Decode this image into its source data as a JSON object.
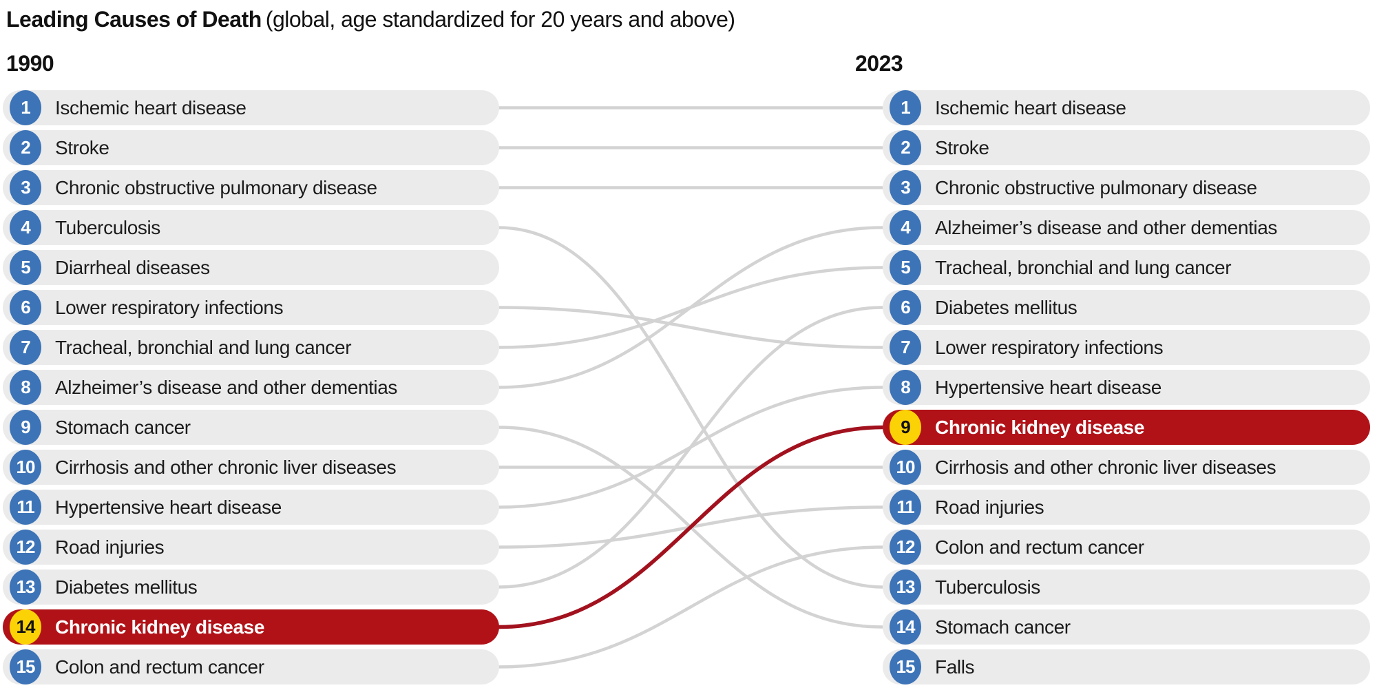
{
  "chart_data": {
    "type": "bump",
    "title": "Leading Causes of Death",
    "subtitle": "(global, age standardized for 20 years and above)",
    "columns": [
      "1990",
      "2023"
    ],
    "left_ranking": [
      {
        "rank": 1,
        "label": "Ischemic heart disease",
        "highlight": false
      },
      {
        "rank": 2,
        "label": "Stroke",
        "highlight": false
      },
      {
        "rank": 3,
        "label": "Chronic obstructive pulmonary disease",
        "highlight": false
      },
      {
        "rank": 4,
        "label": "Tuberculosis",
        "highlight": false
      },
      {
        "rank": 5,
        "label": "Diarrheal diseases",
        "highlight": false
      },
      {
        "rank": 6,
        "label": "Lower respiratory infections",
        "highlight": false
      },
      {
        "rank": 7,
        "label": "Tracheal, bronchial and lung cancer",
        "highlight": false
      },
      {
        "rank": 8,
        "label": "Alzheimer’s disease and other dementias",
        "highlight": false
      },
      {
        "rank": 9,
        "label": "Stomach cancer",
        "highlight": false
      },
      {
        "rank": 10,
        "label": "Cirrhosis and other chronic liver diseases",
        "highlight": false
      },
      {
        "rank": 11,
        "label": "Hypertensive heart disease",
        "highlight": false
      },
      {
        "rank": 12,
        "label": "Road injuries",
        "highlight": false
      },
      {
        "rank": 13,
        "label": "Diabetes mellitus",
        "highlight": false
      },
      {
        "rank": 14,
        "label": "Chronic kidney disease",
        "highlight": true
      },
      {
        "rank": 15,
        "label": "Colon and rectum cancer",
        "highlight": false
      }
    ],
    "right_ranking": [
      {
        "rank": 1,
        "label": "Ischemic heart disease",
        "highlight": false
      },
      {
        "rank": 2,
        "label": "Stroke",
        "highlight": false
      },
      {
        "rank": 3,
        "label": "Chronic obstructive pulmonary disease",
        "highlight": false
      },
      {
        "rank": 4,
        "label": "Alzheimer’s disease and other dementias",
        "highlight": false
      },
      {
        "rank": 5,
        "label": "Tracheal, bronchial and lung cancer",
        "highlight": false
      },
      {
        "rank": 6,
        "label": "Diabetes mellitus",
        "highlight": false
      },
      {
        "rank": 7,
        "label": "Lower respiratory infections",
        "highlight": false
      },
      {
        "rank": 8,
        "label": "Hypertensive heart disease",
        "highlight": false
      },
      {
        "rank": 9,
        "label": "Chronic kidney disease",
        "highlight": true
      },
      {
        "rank": 10,
        "label": "Cirrhosis and other chronic liver diseases",
        "highlight": false
      },
      {
        "rank": 11,
        "label": "Road injuries",
        "highlight": false
      },
      {
        "rank": 12,
        "label": "Colon and rectum cancer",
        "highlight": false
      },
      {
        "rank": 13,
        "label": "Tuberculosis",
        "highlight": false
      },
      {
        "rank": 14,
        "label": "Stomach cancer",
        "highlight": false
      },
      {
        "rank": 15,
        "label": "Falls",
        "highlight": false
      }
    ],
    "links": [
      {
        "from": 1,
        "to": 1,
        "highlight": false
      },
      {
        "from": 2,
        "to": 2,
        "highlight": false
      },
      {
        "from": 3,
        "to": 3,
        "highlight": false
      },
      {
        "from": 4,
        "to": 13,
        "highlight": false
      },
      {
        "from": 6,
        "to": 7,
        "highlight": false
      },
      {
        "from": 7,
        "to": 5,
        "highlight": false
      },
      {
        "from": 8,
        "to": 4,
        "highlight": false
      },
      {
        "from": 9,
        "to": 14,
        "highlight": false
      },
      {
        "from": 10,
        "to": 10,
        "highlight": false
      },
      {
        "from": 11,
        "to": 8,
        "highlight": false
      },
      {
        "from": 12,
        "to": 11,
        "highlight": false
      },
      {
        "from": 13,
        "to": 6,
        "highlight": false
      },
      {
        "from": 15,
        "to": 12,
        "highlight": false
      },
      {
        "from": 14,
        "to": 9,
        "highlight": true
      }
    ]
  },
  "colors": {
    "badge_blue": "#3d74b8",
    "pill_gray": "#ebebeb",
    "line_gray": "#d3d3d3",
    "highlight_red": "#b11218",
    "highlight_line_red": "#a2121e",
    "highlight_yellow": "#fbd206",
    "text_dark": "#1c1c1c"
  }
}
